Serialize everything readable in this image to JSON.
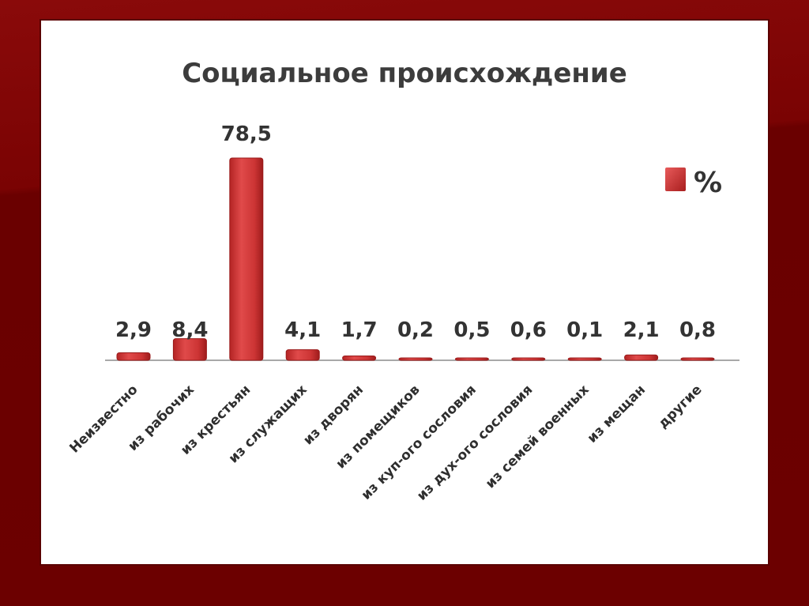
{
  "chart_data": {
    "type": "bar",
    "title": "Социальное происхождение",
    "categories": [
      "Неизвестно",
      "из рабочих",
      "из крестьян",
      "из служащих",
      "из дворян",
      "из помещиков",
      "из куп-ого сословия",
      "из дух-ого сословия",
      "из семей  военных",
      "из мещан",
      "другие"
    ],
    "series": [
      {
        "name": "%",
        "values": [
          2.9,
          8.4,
          78.5,
          4.1,
          1.7,
          0.2,
          0.5,
          0.6,
          0.1,
          2.1,
          0.8
        ]
      }
    ],
    "value_labels": [
      "2,9",
      "8,4",
      "78,5",
      "4,1",
      "1,7",
      "0,2",
      "0,5",
      "0,6",
      "0,1",
      "2,1",
      "0,8"
    ],
    "ylim": [
      0,
      80
    ],
    "grid": false,
    "legend_position": "right",
    "bar_color": "#d23c3c"
  }
}
